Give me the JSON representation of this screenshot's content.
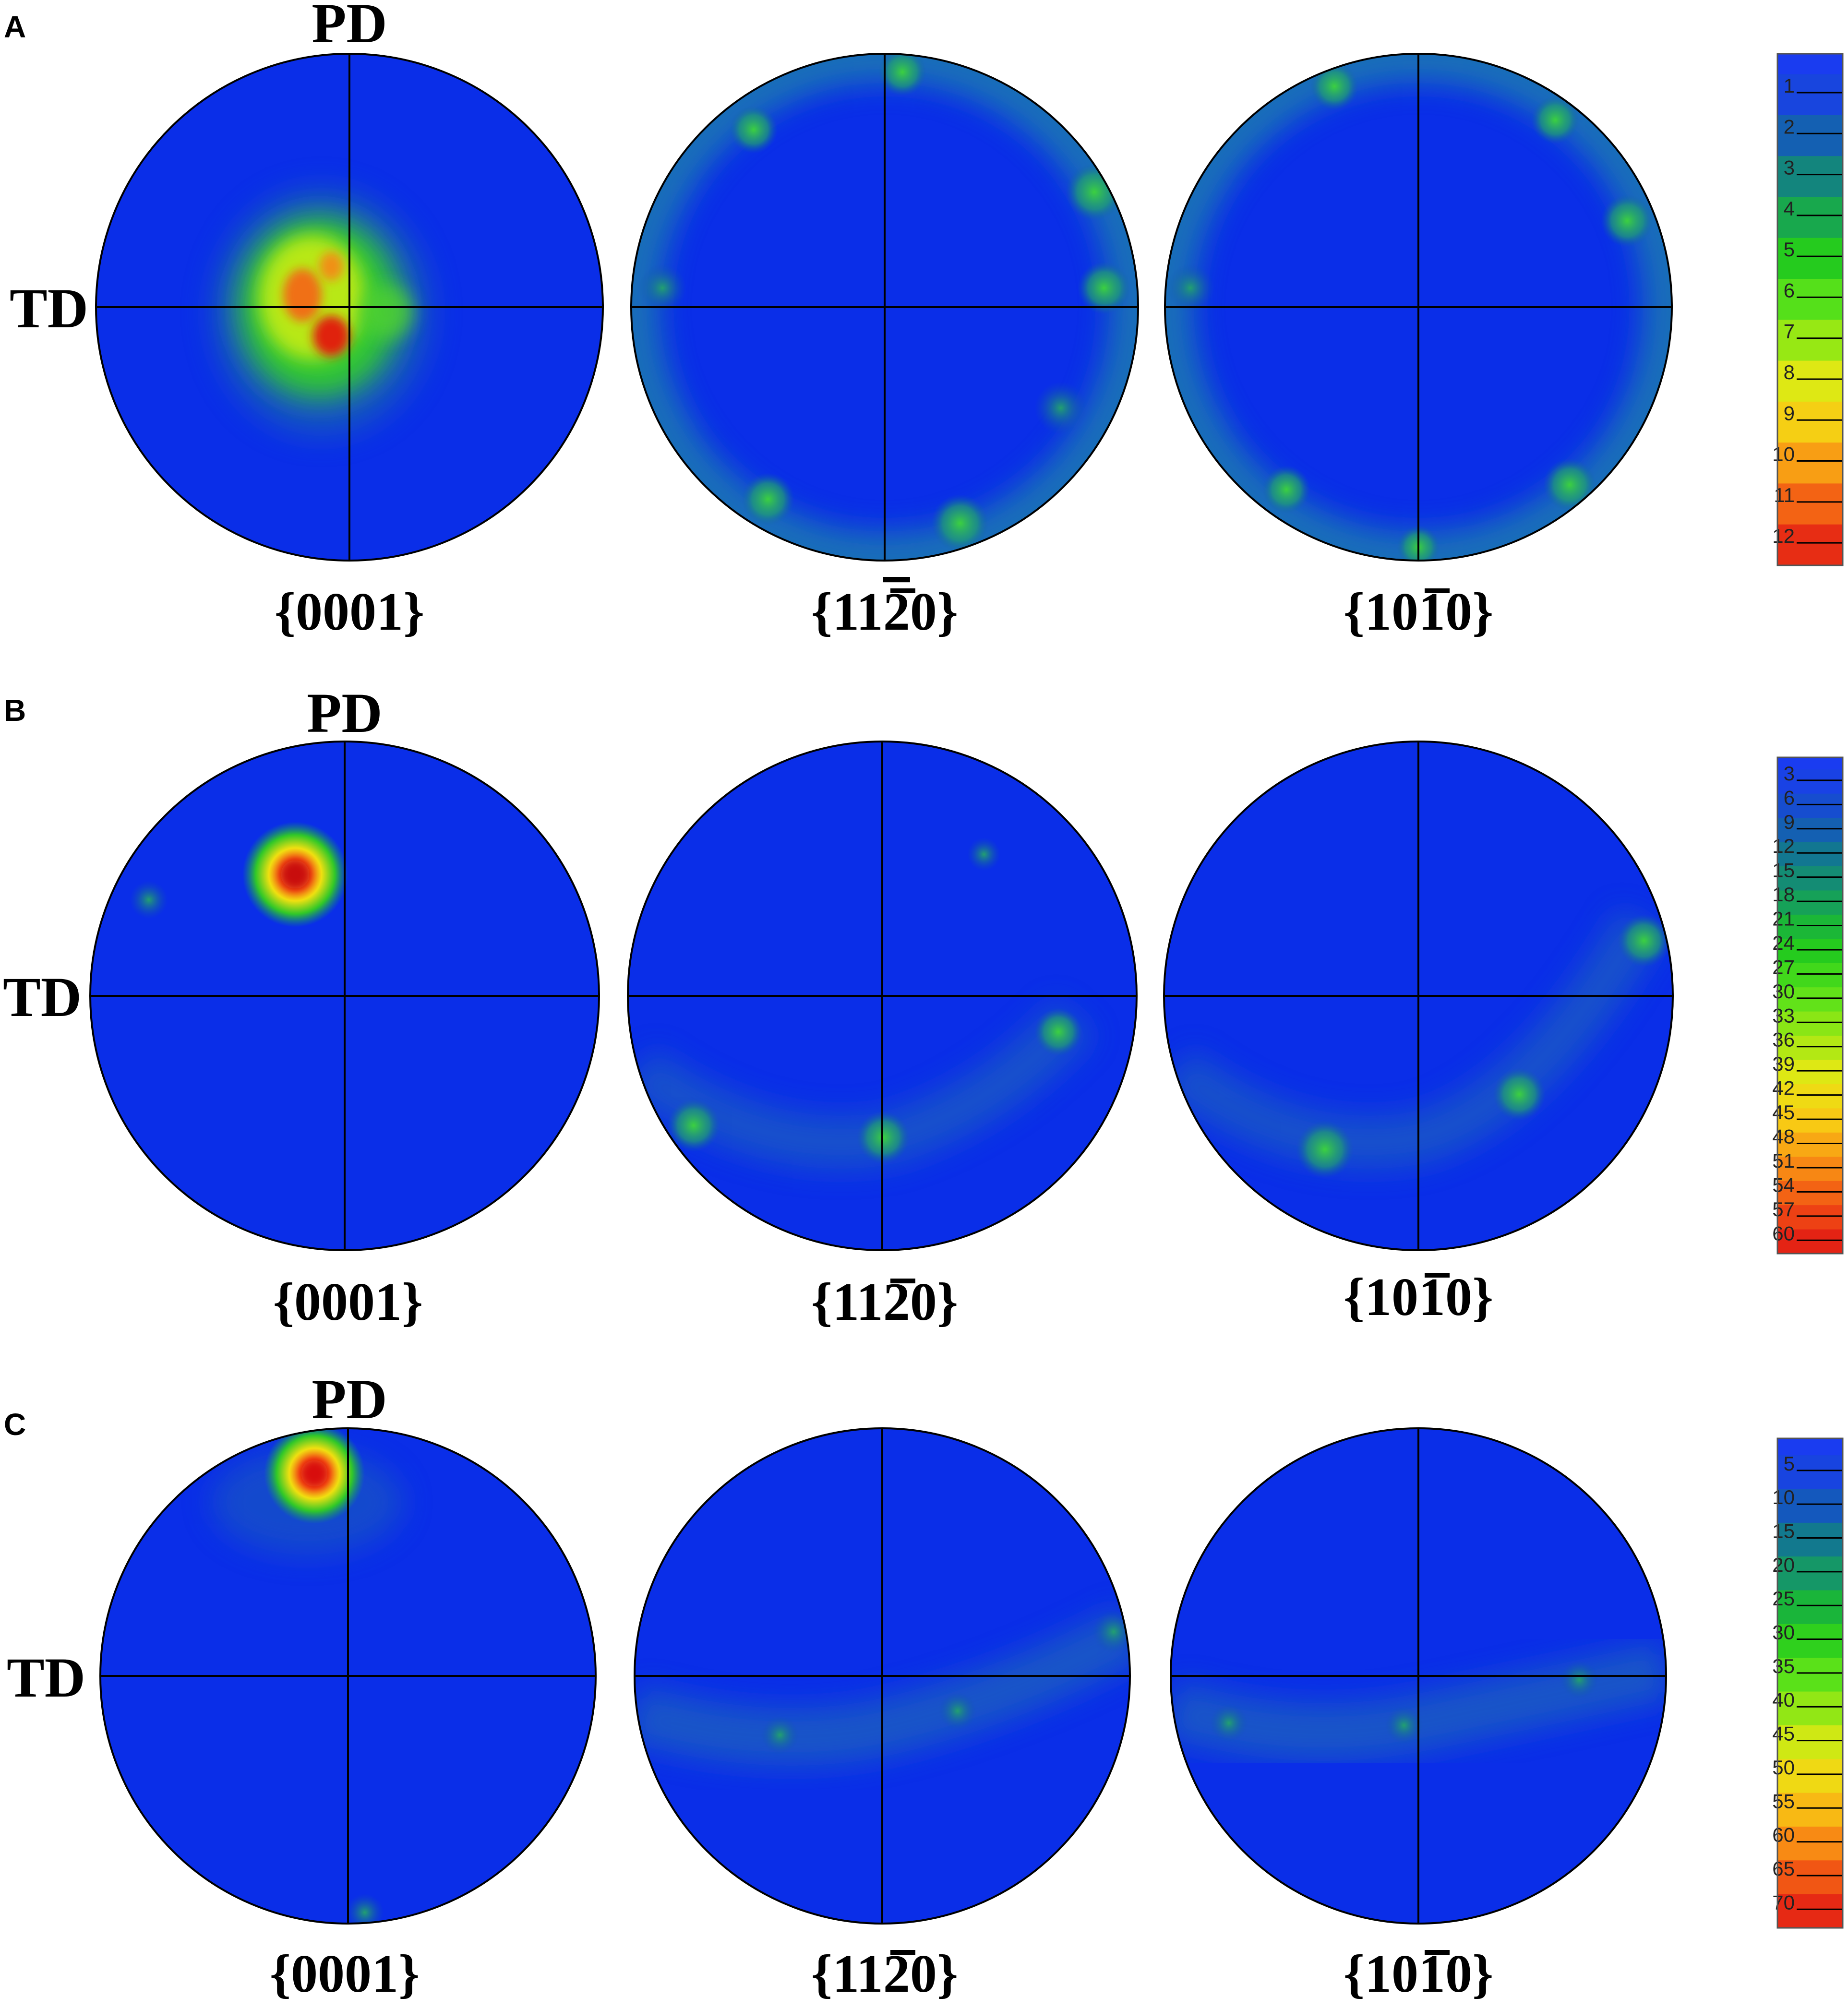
{
  "panels": [
    {
      "letter": "A",
      "pd_label": "PD",
      "td_label": "TD",
      "pole_figures": [
        {
          "plane_pre": "{000",
          "plane_bar": "",
          "plane_post": "1}"
        },
        {
          "plane_pre": "{11",
          "plane_bar": "2",
          "plane_post": "0}"
        },
        {
          "plane_pre": "{10",
          "plane_bar": "1",
          "plane_post": "0}"
        }
      ],
      "scale": [
        "1",
        "2",
        "3",
        "4",
        "5",
        "6",
        "7",
        "8",
        "9",
        "10",
        "11",
        "12"
      ]
    },
    {
      "letter": "B",
      "pd_label": "PD",
      "td_label": "TD",
      "pole_figures": [
        {
          "plane_pre": "{000",
          "plane_bar": "",
          "plane_post": "1}"
        },
        {
          "plane_pre": "{11",
          "plane_bar": "2",
          "plane_post": "0}"
        },
        {
          "plane_pre": "{10",
          "plane_bar": "1",
          "plane_post": "0}"
        }
      ],
      "scale": [
        "3",
        "6",
        "9",
        "12",
        "15",
        "18",
        "21",
        "24",
        "27",
        "30",
        "33",
        "36",
        "39",
        "42",
        "45",
        "48",
        "51",
        "54",
        "57",
        "60"
      ]
    },
    {
      "letter": "C",
      "pd_label": "PD",
      "td_label": "TD",
      "pole_figures": [
        {
          "plane_pre": "{000",
          "plane_bar": "",
          "plane_post": "1}"
        },
        {
          "plane_pre": "{11",
          "plane_bar": "2",
          "plane_post": "0}"
        },
        {
          "plane_pre": "{10",
          "plane_bar": "1",
          "plane_post": "0}"
        }
      ],
      "scale": [
        "5",
        "10",
        "15",
        "20",
        "25",
        "30",
        "35",
        "40",
        "45",
        "50",
        "55",
        "60",
        "65",
        "70"
      ]
    }
  ],
  "colors": {
    "background_blue": "#0a2ee8",
    "scale_ramp": [
      "#1a3cf0",
      "#1550c8",
      "#127a8c",
      "#16a05a",
      "#1ec81e",
      "#52e01a",
      "#9ae814",
      "#e8e814",
      "#f8c814",
      "#f88c14",
      "#f04a14",
      "#e01414"
    ]
  }
}
